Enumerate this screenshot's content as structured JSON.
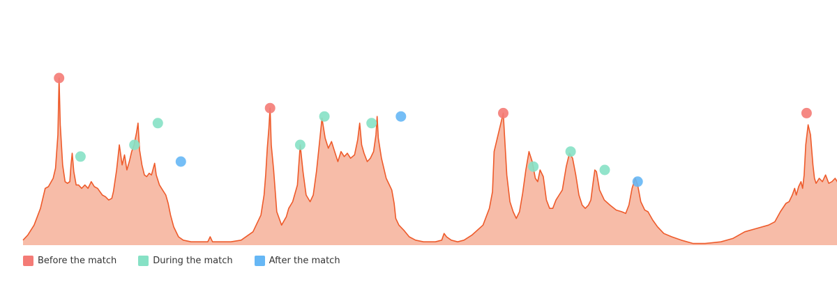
{
  "chart_data": {
    "type": "area",
    "title": "",
    "xlabel": "",
    "ylabel": "",
    "x_range": [
      0,
      1000
    ],
    "y_range": [
      0,
      100
    ],
    "ylim": [
      0,
      100
    ],
    "grid": false,
    "legend_placement": "bottom-left",
    "area_fill": "#f7bca8",
    "line_color": "#ee5a2a",
    "legend": [
      {
        "label": "Before the match",
        "color": "#f47b76"
      },
      {
        "label": "During the match",
        "color": "#86e1c5"
      },
      {
        "label": "After the match",
        "color": "#66b7f5"
      }
    ],
    "series": [
      {
        "values": [
          [
            0,
            3
          ],
          [
            6,
            6
          ],
          [
            14,
            12
          ],
          [
            22,
            22
          ],
          [
            28,
            34
          ],
          [
            32,
            35
          ],
          [
            38,
            40
          ],
          [
            41,
            46
          ],
          [
            44,
            66
          ],
          [
            45.5,
            100
          ],
          [
            47,
            72
          ],
          [
            50,
            48
          ],
          [
            53,
            38
          ],
          [
            56,
            37
          ],
          [
            59,
            38
          ],
          [
            60.5,
            48
          ],
          [
            62,
            55
          ],
          [
            64,
            44
          ],
          [
            67,
            36
          ],
          [
            70,
            36
          ],
          [
            74,
            34
          ],
          [
            78,
            36
          ],
          [
            82,
            34
          ],
          [
            86,
            38
          ],
          [
            90,
            35
          ],
          [
            94,
            34
          ],
          [
            100,
            30
          ],
          [
            104,
            29
          ],
          [
            108,
            27
          ],
          [
            112,
            28
          ],
          [
            114,
            32
          ],
          [
            118,
            45
          ],
          [
            121.5,
            60
          ],
          [
            125,
            48
          ],
          [
            128,
            54
          ],
          [
            131,
            45
          ],
          [
            134,
            50
          ],
          [
            137,
            56
          ],
          [
            140,
            60
          ],
          [
            143,
            67
          ],
          [
            145,
            73
          ],
          [
            147,
            57
          ],
          [
            150,
            48
          ],
          [
            153,
            42
          ],
          [
            156,
            41
          ],
          [
            159,
            43
          ],
          [
            162,
            42
          ],
          [
            166,
            49
          ],
          [
            168,
            42
          ],
          [
            172,
            36
          ],
          [
            176,
            33
          ],
          [
            180,
            30
          ],
          [
            183,
            25
          ],
          [
            186,
            18
          ],
          [
            190,
            11
          ],
          [
            196,
            5
          ],
          [
            202,
            3
          ],
          [
            212,
            2
          ],
          [
            225,
            2
          ],
          [
            233,
            2
          ],
          [
            236,
            5
          ],
          [
            239,
            2
          ],
          [
            248,
            2
          ],
          [
            262,
            2
          ],
          [
            275,
            3
          ],
          [
            290,
            8
          ],
          [
            300,
            18
          ],
          [
            304,
            30
          ],
          [
            306,
            42
          ],
          [
            308,
            58
          ],
          [
            310,
            70
          ],
          [
            311.5,
            82
          ],
          [
            313,
            60
          ],
          [
            316,
            45
          ],
          [
            320,
            20
          ],
          [
            326,
            12
          ],
          [
            332,
            17
          ],
          [
            335,
            22
          ],
          [
            340,
            26
          ],
          [
            346,
            36
          ],
          [
            349.5,
            60
          ],
          [
            353,
            44
          ],
          [
            357,
            30
          ],
          [
            362,
            26
          ],
          [
            366,
            30
          ],
          [
            370,
            44
          ],
          [
            374,
            62
          ],
          [
            377,
            76
          ],
          [
            381,
            64
          ],
          [
            385,
            58
          ],
          [
            389,
            62
          ],
          [
            393,
            56
          ],
          [
            397,
            50
          ],
          [
            401,
            56
          ],
          [
            405,
            53
          ],
          [
            409,
            55
          ],
          [
            413,
            52
          ],
          [
            418,
            54
          ],
          [
            422,
            63
          ],
          [
            424.5,
            73
          ],
          [
            427,
            60
          ],
          [
            430,
            55
          ],
          [
            434,
            50
          ],
          [
            438,
            52
          ],
          [
            442,
            56
          ],
          [
            445,
            66
          ],
          [
            446.5,
            77
          ],
          [
            448,
            64
          ],
          [
            452,
            52
          ],
          [
            458,
            40
          ],
          [
            462,
            36
          ],
          [
            465,
            33
          ],
          [
            468,
            25
          ],
          [
            470,
            16
          ],
          [
            474,
            12
          ],
          [
            480,
            9
          ],
          [
            487,
            5
          ],
          [
            495,
            3
          ],
          [
            505,
            2
          ],
          [
            520,
            2
          ],
          [
            528,
            3
          ],
          [
            531,
            7
          ],
          [
            534,
            5
          ],
          [
            540,
            3
          ],
          [
            548,
            2
          ],
          [
            556,
            3
          ],
          [
            566,
            6
          ],
          [
            580,
            12
          ],
          [
            588,
            22
          ],
          [
            592,
            32
          ],
          [
            594,
            56
          ],
          [
            605.5,
            79
          ],
          [
            610,
            42
          ],
          [
            614,
            26
          ],
          [
            618,
            20
          ],
          [
            622,
            16
          ],
          [
            626,
            20
          ],
          [
            630,
            31
          ],
          [
            634,
            45
          ],
          [
            638,
            56
          ],
          [
            642,
            50
          ],
          [
            646,
            40
          ],
          [
            649,
            38
          ],
          [
            652,
            45
          ],
          [
            656,
            41
          ],
          [
            660,
            27
          ],
          [
            664,
            22
          ],
          [
            668,
            22
          ],
          [
            672,
            27
          ],
          [
            676,
            30
          ],
          [
            680,
            33
          ],
          [
            685,
            47
          ],
          [
            689,
            55
          ],
          [
            693,
            52
          ],
          [
            697,
            42
          ],
          [
            701,
            30
          ],
          [
            705,
            24
          ],
          [
            709,
            22
          ],
          [
            713,
            24
          ],
          [
            716,
            27
          ],
          [
            719,
            38
          ],
          [
            721,
            45
          ],
          [
            723,
            44
          ],
          [
            727,
            33
          ],
          [
            733,
            27
          ],
          [
            740,
            24
          ],
          [
            748,
            21
          ],
          [
            755,
            20
          ],
          [
            760,
            19
          ],
          [
            764,
            24
          ],
          [
            768,
            34
          ],
          [
            772,
            40
          ],
          [
            775,
            36
          ],
          [
            779,
            26
          ],
          [
            784,
            21
          ],
          [
            788,
            20
          ],
          [
            794,
            15
          ],
          [
            800,
            11
          ],
          [
            808,
            7
          ],
          [
            818,
            5
          ],
          [
            830,
            3
          ],
          [
            845,
            1
          ],
          [
            860,
            1
          ],
          [
            880,
            2
          ],
          [
            895,
            4
          ],
          [
            910,
            8
          ],
          [
            925,
            10
          ],
          [
            940,
            12
          ],
          [
            948,
            14
          ],
          [
            955,
            20
          ],
          [
            962,
            25
          ],
          [
            966,
            26
          ],
          [
            970,
            30
          ],
          [
            973,
            34
          ],
          [
            975,
            30
          ],
          [
            978,
            35
          ],
          [
            981,
            38
          ],
          [
            983,
            34
          ],
          [
            985,
            42
          ],
          [
            987,
            60
          ],
          [
            990,
            72
          ],
          [
            993,
            66
          ],
          [
            996,
            48
          ],
          [
            998,
            40
          ],
          [
            1000,
            37
          ],
          [
            1004,
            40
          ],
          [
            1008,
            38
          ],
          [
            1012,
            42
          ],
          [
            1016,
            37
          ],
          [
            1020,
            38
          ],
          [
            1024,
            40
          ],
          [
            1028,
            37
          ],
          [
            1032,
            42
          ],
          [
            1036,
            38
          ],
          [
            1040,
            45
          ],
          [
            1042,
            40
          ]
        ]
      }
    ],
    "markers": [
      {
        "x": 45.5,
        "y": 100,
        "phase": "before"
      },
      {
        "x": 72.5,
        "y": 53,
        "phase": "during"
      },
      {
        "x": 140.5,
        "y": 60,
        "phase": "during"
      },
      {
        "x": 170,
        "y": 73,
        "phase": "during"
      },
      {
        "x": 199,
        "y": 50,
        "phase": "after"
      },
      {
        "x": 311.5,
        "y": 82,
        "phase": "before"
      },
      {
        "x": 349.5,
        "y": 60,
        "phase": "during"
      },
      {
        "x": 380,
        "y": 77,
        "phase": "during"
      },
      {
        "x": 439.5,
        "y": 73,
        "phase": "during"
      },
      {
        "x": 476.5,
        "y": 77,
        "phase": "after"
      },
      {
        "x": 605.5,
        "y": 79,
        "phase": "before"
      },
      {
        "x": 643.5,
        "y": 47,
        "phase": "during"
      },
      {
        "x": 690.5,
        "y": 56,
        "phase": "during"
      },
      {
        "x": 733.5,
        "y": 45,
        "phase": "during"
      },
      {
        "x": 775,
        "y": 38,
        "phase": "after"
      },
      {
        "x": 988,
        "y": 79,
        "phase": "before"
      }
    ]
  }
}
